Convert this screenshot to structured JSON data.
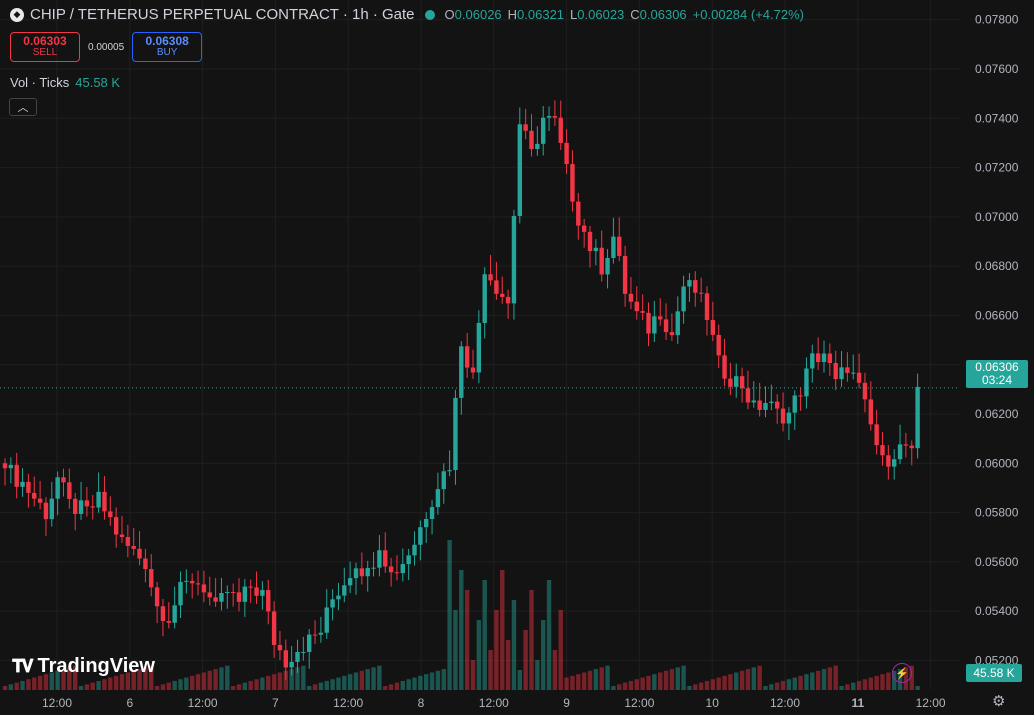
{
  "header": {
    "title": "CHIP / TETHERUS PERPETUAL CONTRACT · 1h · Gate",
    "ohlc": [
      {
        "key": "O",
        "value": "0.06026"
      },
      {
        "key": "H",
        "value": "0.06321"
      },
      {
        "key": "L",
        "value": "0.06023"
      },
      {
        "key": "C",
        "value": "0.06306"
      }
    ],
    "change": "+0.00284 (+4.72%)"
  },
  "trade": {
    "sell_price": "0.06303",
    "sell_label": "SELL",
    "spread": "0.00005",
    "buy_price": "0.06308",
    "buy_label": "BUY"
  },
  "volume_legend": {
    "label": "Vol · Ticks",
    "value": "45.58 K"
  },
  "brand": "TradingView",
  "last_price_tag": {
    "price": "0.06306",
    "countdown": "03:24"
  },
  "volume_tag": "45.58 K",
  "colors": {
    "up": "#26a69a",
    "down": "#f23645",
    "background": "#131313",
    "grid": "#1f1f1f",
    "axis_text": "#b2b5be"
  },
  "icons": {
    "logo": "diamond-logo-icon",
    "status": "market-open-dot-icon",
    "collapse": "chevron-up-icon",
    "bolt": "lightning-icon",
    "settings": "gear-icon"
  },
  "chart_data": {
    "type": "candlestick",
    "y_ticks": [
      "0.07800",
      "0.07600",
      "0.07400",
      "0.07200",
      "0.07000",
      "0.06800",
      "0.06600",
      "0.06400",
      "0.06200",
      "0.06000",
      "0.05800",
      "0.05600",
      "0.05400",
      "0.05200"
    ],
    "ylim": [
      0.0508,
      0.0788
    ],
    "x_ticks": [
      "12:00",
      "6",
      "12:00",
      "7",
      "12:00",
      "8",
      "12:00",
      "9",
      "12:00",
      "10",
      "12:00",
      "11",
      "12:00"
    ],
    "candles_per_day": 24,
    "last_price": 0.06306,
    "close_path": [
      [
        0,
        0.0598
      ],
      [
        3,
        0.0592
      ],
      [
        5,
        0.0586
      ],
      [
        7,
        0.058
      ],
      [
        9,
        0.0594
      ],
      [
        11,
        0.0583
      ],
      [
        14,
        0.058
      ],
      [
        16,
        0.0585
      ],
      [
        18,
        0.0577
      ],
      [
        20,
        0.0568
      ],
      [
        22,
        0.0564
      ],
      [
        24,
        0.056
      ],
      [
        26,
        0.0542
      ],
      [
        28,
        0.0538
      ],
      [
        30,
        0.0548
      ],
      [
        32,
        0.0553
      ],
      [
        34,
        0.055
      ],
      [
        36,
        0.054
      ],
      [
        38,
        0.0548
      ],
      [
        40,
        0.0543
      ],
      [
        42,
        0.055
      ],
      [
        44,
        0.0547
      ],
      [
        46,
        0.0528
      ],
      [
        48,
        0.052
      ],
      [
        50,
        0.0525
      ],
      [
        52,
        0.0528
      ],
      [
        54,
        0.0532
      ],
      [
        56,
        0.0545
      ],
      [
        58,
        0.0552
      ],
      [
        60,
        0.056
      ],
      [
        62,
        0.0555
      ],
      [
        64,
        0.0568
      ],
      [
        66,
        0.0555
      ],
      [
        68,
        0.056
      ],
      [
        70,
        0.0568
      ],
      [
        72,
        0.058
      ],
      [
        74,
        0.0592
      ],
      [
        76,
        0.06
      ],
      [
        78,
        0.065
      ],
      [
        80,
        0.0635
      ],
      [
        82,
        0.068
      ],
      [
        84,
        0.0672
      ],
      [
        86,
        0.0665
      ],
      [
        88,
        0.0738
      ],
      [
        90,
        0.0725
      ],
      [
        92,
        0.074
      ],
      [
        94,
        0.0738
      ],
      [
        96,
        0.0718
      ],
      [
        98,
        0.07
      ],
      [
        100,
        0.0688
      ],
      [
        102,
        0.068
      ],
      [
        104,
        0.0692
      ],
      [
        106,
        0.067
      ],
      [
        108,
        0.066
      ],
      [
        110,
        0.0655
      ],
      [
        112,
        0.0662
      ],
      [
        114,
        0.0652
      ],
      [
        116,
        0.0672
      ],
      [
        118,
        0.067
      ],
      [
        120,
        0.066
      ],
      [
        122,
        0.064
      ],
      [
        124,
        0.0635
      ],
      [
        126,
        0.0632
      ],
      [
        128,
        0.0622
      ],
      [
        130,
        0.0625
      ],
      [
        132,
        0.062
      ],
      [
        134,
        0.062
      ],
      [
        136,
        0.063
      ],
      [
        138,
        0.0642
      ],
      [
        140,
        0.0645
      ],
      [
        142,
        0.0632
      ],
      [
        144,
        0.064
      ],
      [
        146,
        0.063
      ],
      [
        148,
        0.0615
      ],
      [
        150,
        0.06
      ],
      [
        152,
        0.0605
      ],
      [
        154,
        0.0607
      ],
      [
        155,
        0.0603
      ],
      [
        156,
        0.0631
      ]
    ],
    "volume_peak_index": 77,
    "volume_note": "Vol · Ticks"
  }
}
